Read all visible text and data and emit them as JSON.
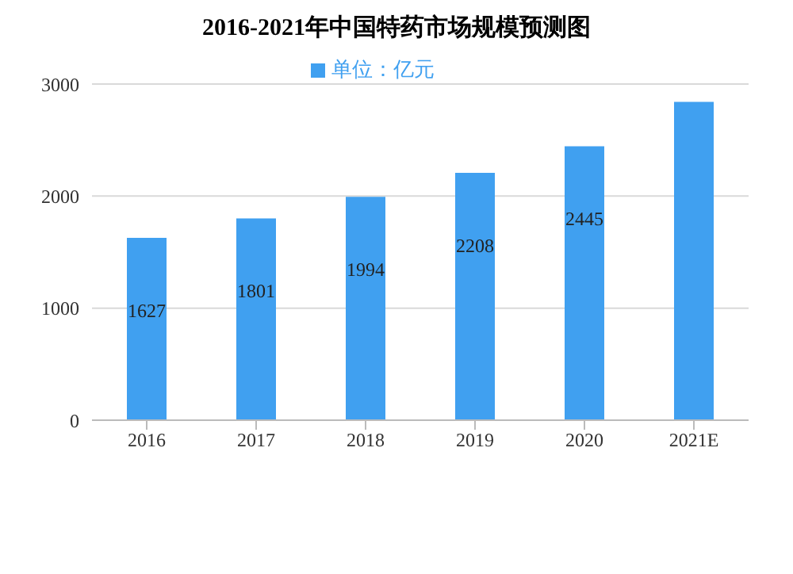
{
  "chart_data": {
    "type": "bar",
    "title": "2016-2021年中国特药市场规模预测图",
    "categories": [
      "2016",
      "2017",
      "2018",
      "2019",
      "2020",
      "2021E"
    ],
    "series": [
      {
        "name": "单位：亿元",
        "color": "#40a0f0",
        "values": [
          1627,
          1801,
          1994,
          2208,
          2445,
          2840
        ],
        "value_labels": [
          "1627",
          "1801",
          "1994",
          "2208",
          "2445",
          null
        ]
      }
    ],
    "ylim": [
      0,
      3000
    ],
    "yticks": [
      0,
      1000,
      2000,
      3000
    ],
    "grid": "y",
    "legend": "top"
  }
}
